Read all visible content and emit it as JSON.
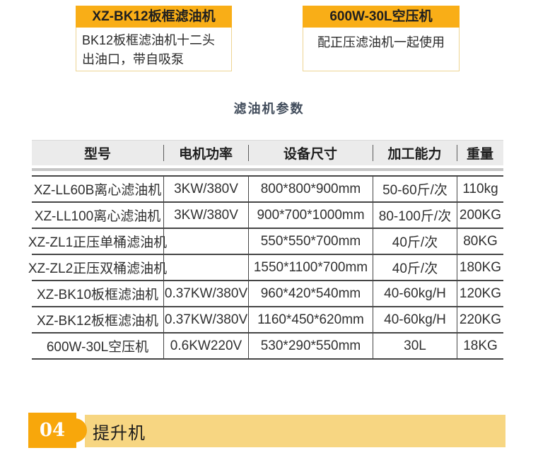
{
  "cards": [
    {
      "title": "XZ-BK12板框滤油机",
      "desc": "BK12板框滤油机十二头出油口，带自吸泵"
    },
    {
      "title": "600W-30L空压机",
      "desc": "配正压滤油机一起使用"
    }
  ],
  "section_title": "滤油机参数",
  "table": {
    "headers": [
      "型号",
      "电机功率",
      "设备尺寸",
      "加工能力",
      "重量"
    ],
    "rows": [
      [
        "XZ-LL60B离心滤油机",
        "3KW/380V",
        "800*800*900mm",
        "50-60斤/次",
        "110kg"
      ],
      [
        "XZ-LL100离心滤油机",
        "3KW/380V",
        "900*700*1000mm",
        "80-100斤/次",
        "200KG"
      ],
      [
        "XZ-ZL1正压单桶滤油机",
        "",
        "550*550*700mm",
        "40斤/次",
        "80KG"
      ],
      [
        "XZ-ZL2正压双桶滤油机",
        "",
        "1550*1100*700mm",
        "40斤/次",
        "180KG"
      ],
      [
        "XZ-BK10板框滤油机",
        "0.37KW/380V",
        "960*420*540mm",
        "40-60kg/H",
        "120KG"
      ],
      [
        "XZ-BK12板框滤油机",
        "0.37KW/380V",
        "1160*450*620mm",
        "40-60kg/H",
        "220KG"
      ],
      [
        "600W-30L空压机",
        "0.6KW220V",
        "530*290*550mm",
        "30L",
        "18KG"
      ]
    ]
  },
  "banner": {
    "number": "04",
    "label": "提升机"
  },
  "colors": {
    "amber": "#F9AE17",
    "banner_box": "#F8A70B",
    "banner_strip": "#F7D682",
    "title_text": "#424D5C",
    "table_header_bg": "#EBEBEB",
    "table_line": "#454545"
  }
}
